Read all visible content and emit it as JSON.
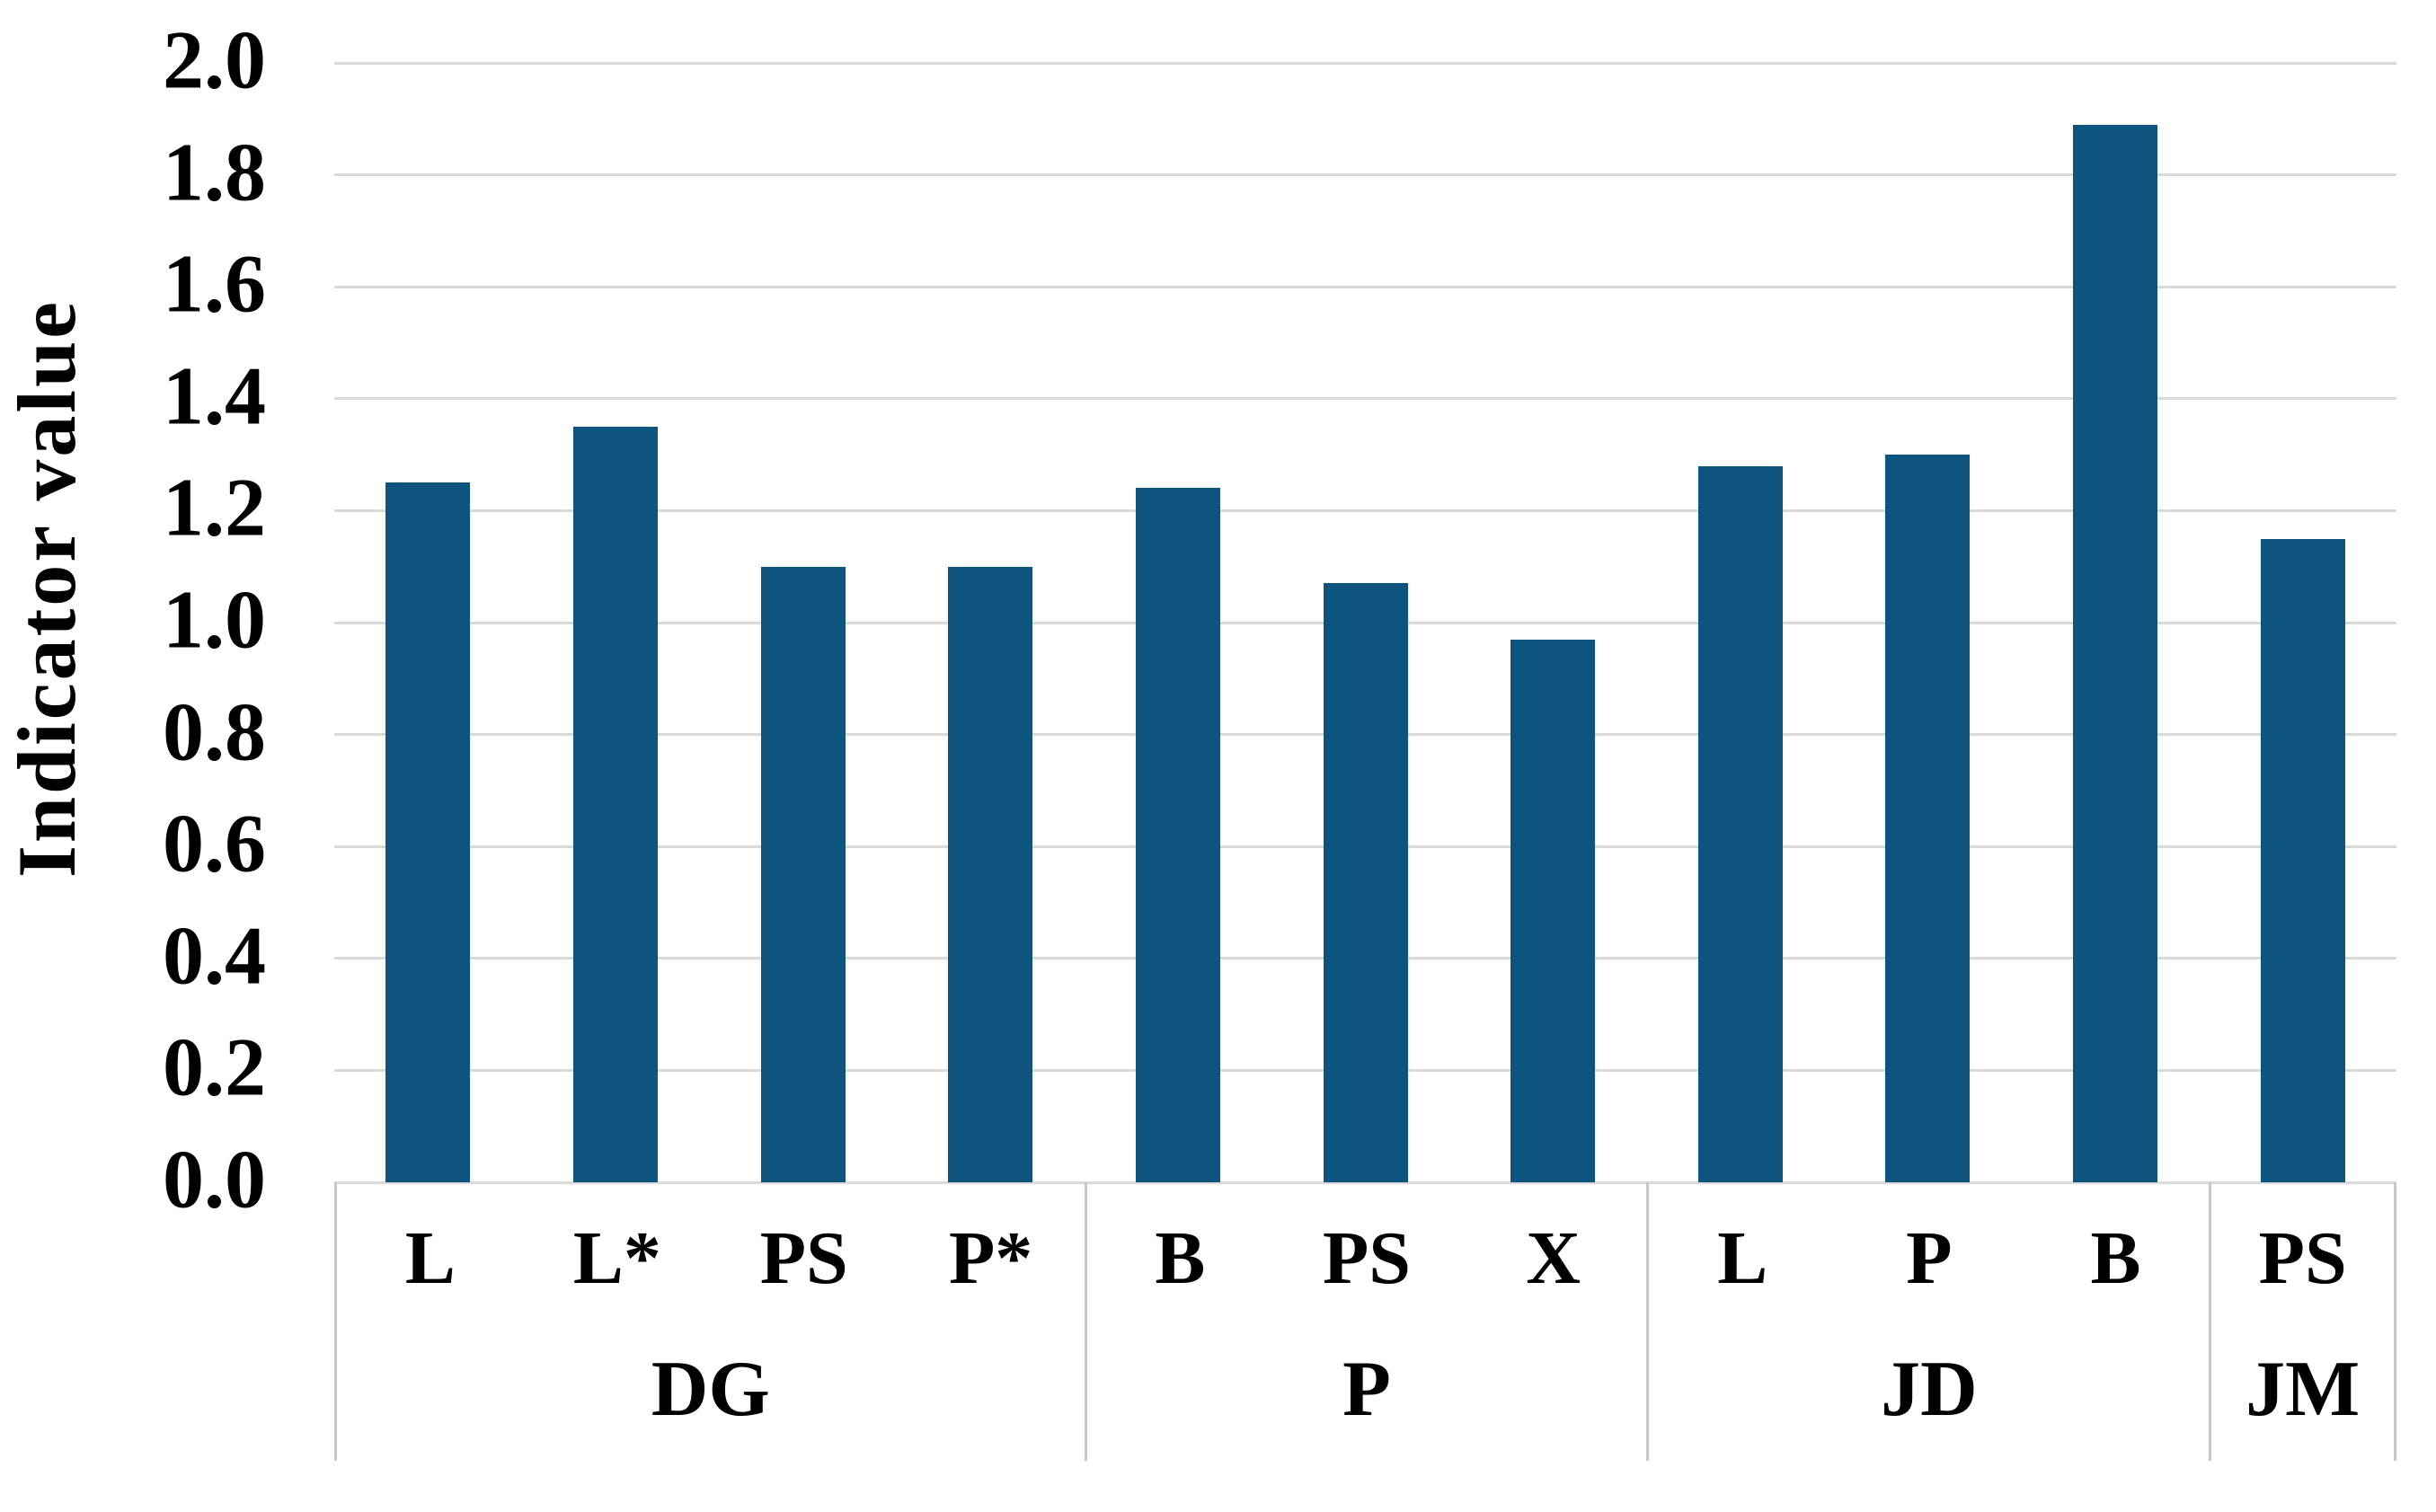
{
  "chart_data": {
    "type": "bar",
    "title": "",
    "xlabel": "",
    "ylabel": "Indicator value",
    "ylim": [
      0.0,
      2.0
    ],
    "ytick_step": 0.2,
    "yticks": [
      "0.0",
      "0.2",
      "0.4",
      "0.6",
      "0.8",
      "1.0",
      "1.2",
      "1.4",
      "1.6",
      "1.8",
      "2.0"
    ],
    "grid": true,
    "legend": "none",
    "bar_color": "#0D547E",
    "gridline_color": "#D9D9D9",
    "table_border_color": "#C8C8C8",
    "text_color": "#000000",
    "groups": [
      {
        "label": "DG",
        "bars": [
          {
            "label": "L",
            "value": 1.25
          },
          {
            "label": "L*",
            "value": 1.35
          },
          {
            "label": "PS",
            "value": 1.1
          },
          {
            "label": "P*",
            "value": 1.1
          }
        ]
      },
      {
        "label": "P",
        "bars": [
          {
            "label": "B",
            "value": 1.24
          },
          {
            "label": "PS",
            "value": 1.07
          },
          {
            "label": "X",
            "value": 0.97
          }
        ]
      },
      {
        "label": "JD",
        "bars": [
          {
            "label": "L",
            "value": 1.28
          },
          {
            "label": "P",
            "value": 1.3
          },
          {
            "label": "B",
            "value": 1.89
          }
        ]
      },
      {
        "label": "JM",
        "bars": [
          {
            "label": "PS",
            "value": 1.15
          }
        ]
      }
    ]
  }
}
